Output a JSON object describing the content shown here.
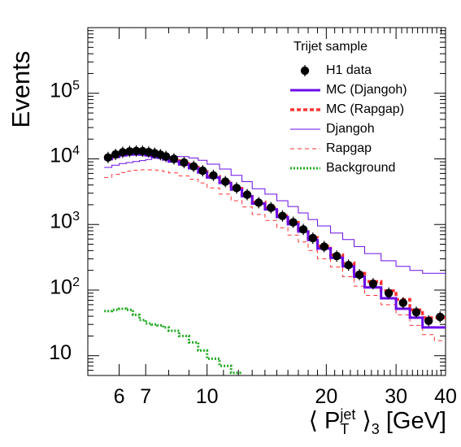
{
  "chart_data": {
    "type": "line",
    "ylabel": "Events",
    "xlabel": {
      "prefix": "⟨ P",
      "sup": "jet",
      "sub": "T",
      "close": "⟩",
      "sub2": "3",
      "unit": "[GeV]"
    },
    "xscale": "log",
    "yscale": "log",
    "xlim": [
      5.0,
      40.0
    ],
    "ylim": [
      5.0,
      1000000
    ],
    "x_ticks": [
      6,
      7,
      10,
      20,
      30,
      40
    ],
    "y_ticks": [
      {
        "v": 10,
        "base": "10",
        "exp": ""
      },
      {
        "v": 100,
        "base": "10",
        "exp": "2"
      },
      {
        "v": 1000,
        "base": "10",
        "exp": "3"
      },
      {
        "v": 10000,
        "base": "10",
        "exp": "4"
      },
      {
        "v": 100000,
        "base": "10",
        "exp": "5"
      }
    ],
    "bin_edges": [
      5.5,
      5.75,
      6.0,
      6.25,
      6.5,
      6.75,
      7.0,
      7.25,
      7.5,
      7.75,
      8.0,
      8.5,
      9.0,
      9.5,
      10.0,
      10.75,
      11.5,
      12.25,
      13.0,
      14.0,
      15.0,
      16.0,
      17.0,
      18.0,
      19.0,
      20.5,
      22.0,
      23.5,
      25.0,
      27.5,
      30.0,
      32.5,
      35.0,
      37.5,
      40.0
    ],
    "legend": {
      "title": "Trijet sample",
      "position": "top-right",
      "entries": [
        "H1 data",
        "MC (Djangoh)",
        "MC (Rapgap)",
        "Djangoh",
        "Rapgap",
        "Background"
      ]
    },
    "series": [
      {
        "name": "H1 data",
        "style": "points",
        "color": "#000000",
        "values": [
          10500,
          11700,
          12600,
          13000,
          13200,
          13100,
          12700,
          12200,
          11600,
          10900,
          10000,
          8800,
          7700,
          6600,
          5600,
          4500,
          3600,
          2850,
          2150,
          1800,
          1350,
          1080,
          840,
          620,
          460,
          330,
          240,
          172,
          125,
          90,
          64,
          46,
          34,
          39
        ]
      },
      {
        "name": "MC (Djangoh)",
        "style": "step-thick",
        "color": "#6a0dea",
        "values": [
          9900,
          10700,
          11300,
          11600,
          11700,
          11600,
          11300,
          10900,
          10400,
          9800,
          9100,
          8200,
          7200,
          6200,
          5200,
          4300,
          3400,
          2700,
          2080,
          1700,
          1300,
          1010,
          780,
          580,
          430,
          310,
          230,
          160,
          110,
          75,
          52,
          38,
          27,
          27
        ]
      },
      {
        "name": "MC (Rapgap)",
        "style": "step-dashed-thick",
        "color": "#ff3333",
        "values": [
          10200,
          11100,
          11800,
          12100,
          12200,
          12100,
          11800,
          11300,
          10800,
          10200,
          9400,
          8500,
          7500,
          6400,
          5400,
          4450,
          3550,
          2850,
          2200,
          1780,
          1360,
          1070,
          840,
          630,
          470,
          345,
          260,
          180,
          135,
          98,
          72,
          50,
          38,
          38
        ]
      },
      {
        "name": "Djangoh",
        "style": "step-thin",
        "color": "#6a0dea",
        "values": [
          7400,
          8000,
          8500,
          8800,
          9100,
          9400,
          9800,
          10300,
          10600,
          10800,
          10900,
          10800,
          10300,
          9500,
          8300,
          7000,
          5600,
          4500,
          3500,
          2900,
          2300,
          1880,
          1500,
          1190,
          950,
          740,
          590,
          460,
          360,
          280,
          230,
          200,
          180,
          180
        ]
      },
      {
        "name": "Rapgap",
        "style": "step-thin-dashed",
        "color": "#ff3333",
        "values": [
          5200,
          5800,
          6200,
          6500,
          6700,
          6800,
          6800,
          6750,
          6600,
          6400,
          6100,
          5500,
          4900,
          4300,
          3600,
          2900,
          2300,
          1850,
          1420,
          1150,
          890,
          690,
          540,
          400,
          300,
          225,
          160,
          115,
          83,
          60,
          42,
          29,
          21,
          17
        ]
      },
      {
        "name": "Background",
        "style": "step-dotted",
        "color": "#22aa22",
        "values": [
          48,
          50,
          52,
          50,
          42,
          35,
          31,
          30,
          29,
          27,
          24,
          20,
          16,
          12,
          9,
          7,
          5.5
        ]
      }
    ],
    "grid": false
  }
}
